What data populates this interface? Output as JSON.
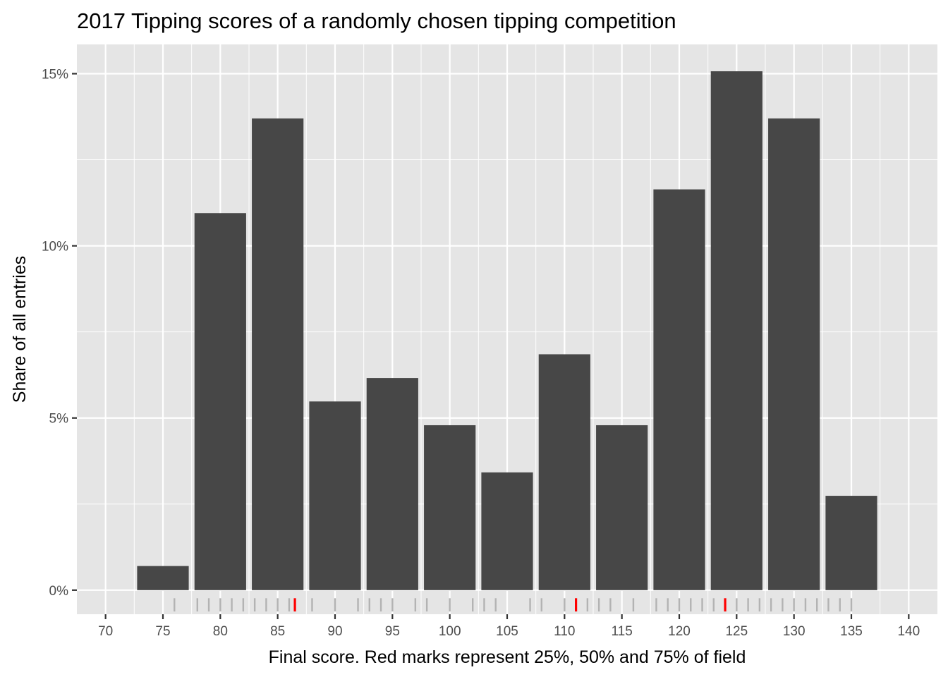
{
  "chart_data": {
    "type": "bar",
    "title": "2017 Tipping scores of a randomly chosen tipping competition",
    "xlabel": "Final score. Red marks represent 25%, 50% and 75% of field",
    "ylabel": "Share of all entries",
    "bin_width": 5,
    "bins": [
      {
        "center": 75,
        "value": 0.7
      },
      {
        "center": 80,
        "value": 10.95
      },
      {
        "center": 85,
        "value": 13.7
      },
      {
        "center": 90,
        "value": 5.48
      },
      {
        "center": 95,
        "value": 6.16
      },
      {
        "center": 100,
        "value": 4.79
      },
      {
        "center": 105,
        "value": 3.42
      },
      {
        "center": 110,
        "value": 6.85
      },
      {
        "center": 115,
        "value": 4.79
      },
      {
        "center": 120,
        "value": 11.64
      },
      {
        "center": 125,
        "value": 15.07
      },
      {
        "center": 130,
        "value": 13.7
      },
      {
        "center": 135,
        "value": 2.74
      }
    ],
    "xlim": [
      67.5,
      142.5
    ],
    "ylim": [
      -0.7,
      15.85
    ],
    "x_ticks": [
      "70",
      "75",
      "80",
      "85",
      "90",
      "95",
      "100",
      "105",
      "110",
      "115",
      "120",
      "125",
      "130",
      "135",
      "140"
    ],
    "y_ticks": [
      "0%",
      "5%",
      "10%",
      "15%"
    ],
    "y_tick_values": [
      0,
      5,
      10,
      15
    ],
    "rug_marks": [
      76,
      78,
      79,
      80,
      81,
      82,
      83,
      84,
      85,
      86,
      88,
      90,
      92,
      93,
      94,
      95,
      97,
      98,
      100,
      102,
      103,
      104,
      107,
      108,
      110,
      112,
      113,
      114,
      116,
      118,
      119,
      120,
      121,
      122,
      123,
      125,
      126,
      127,
      128,
      129,
      130,
      131,
      132,
      133,
      134,
      135
    ],
    "quantile_marks": [
      86.5,
      111,
      124
    ],
    "grid": true,
    "bar_color": "#474747",
    "panel_color": "#e5e5e5",
    "rug_color": "#b3b3b3",
    "quantile_color": "#ff0000"
  }
}
